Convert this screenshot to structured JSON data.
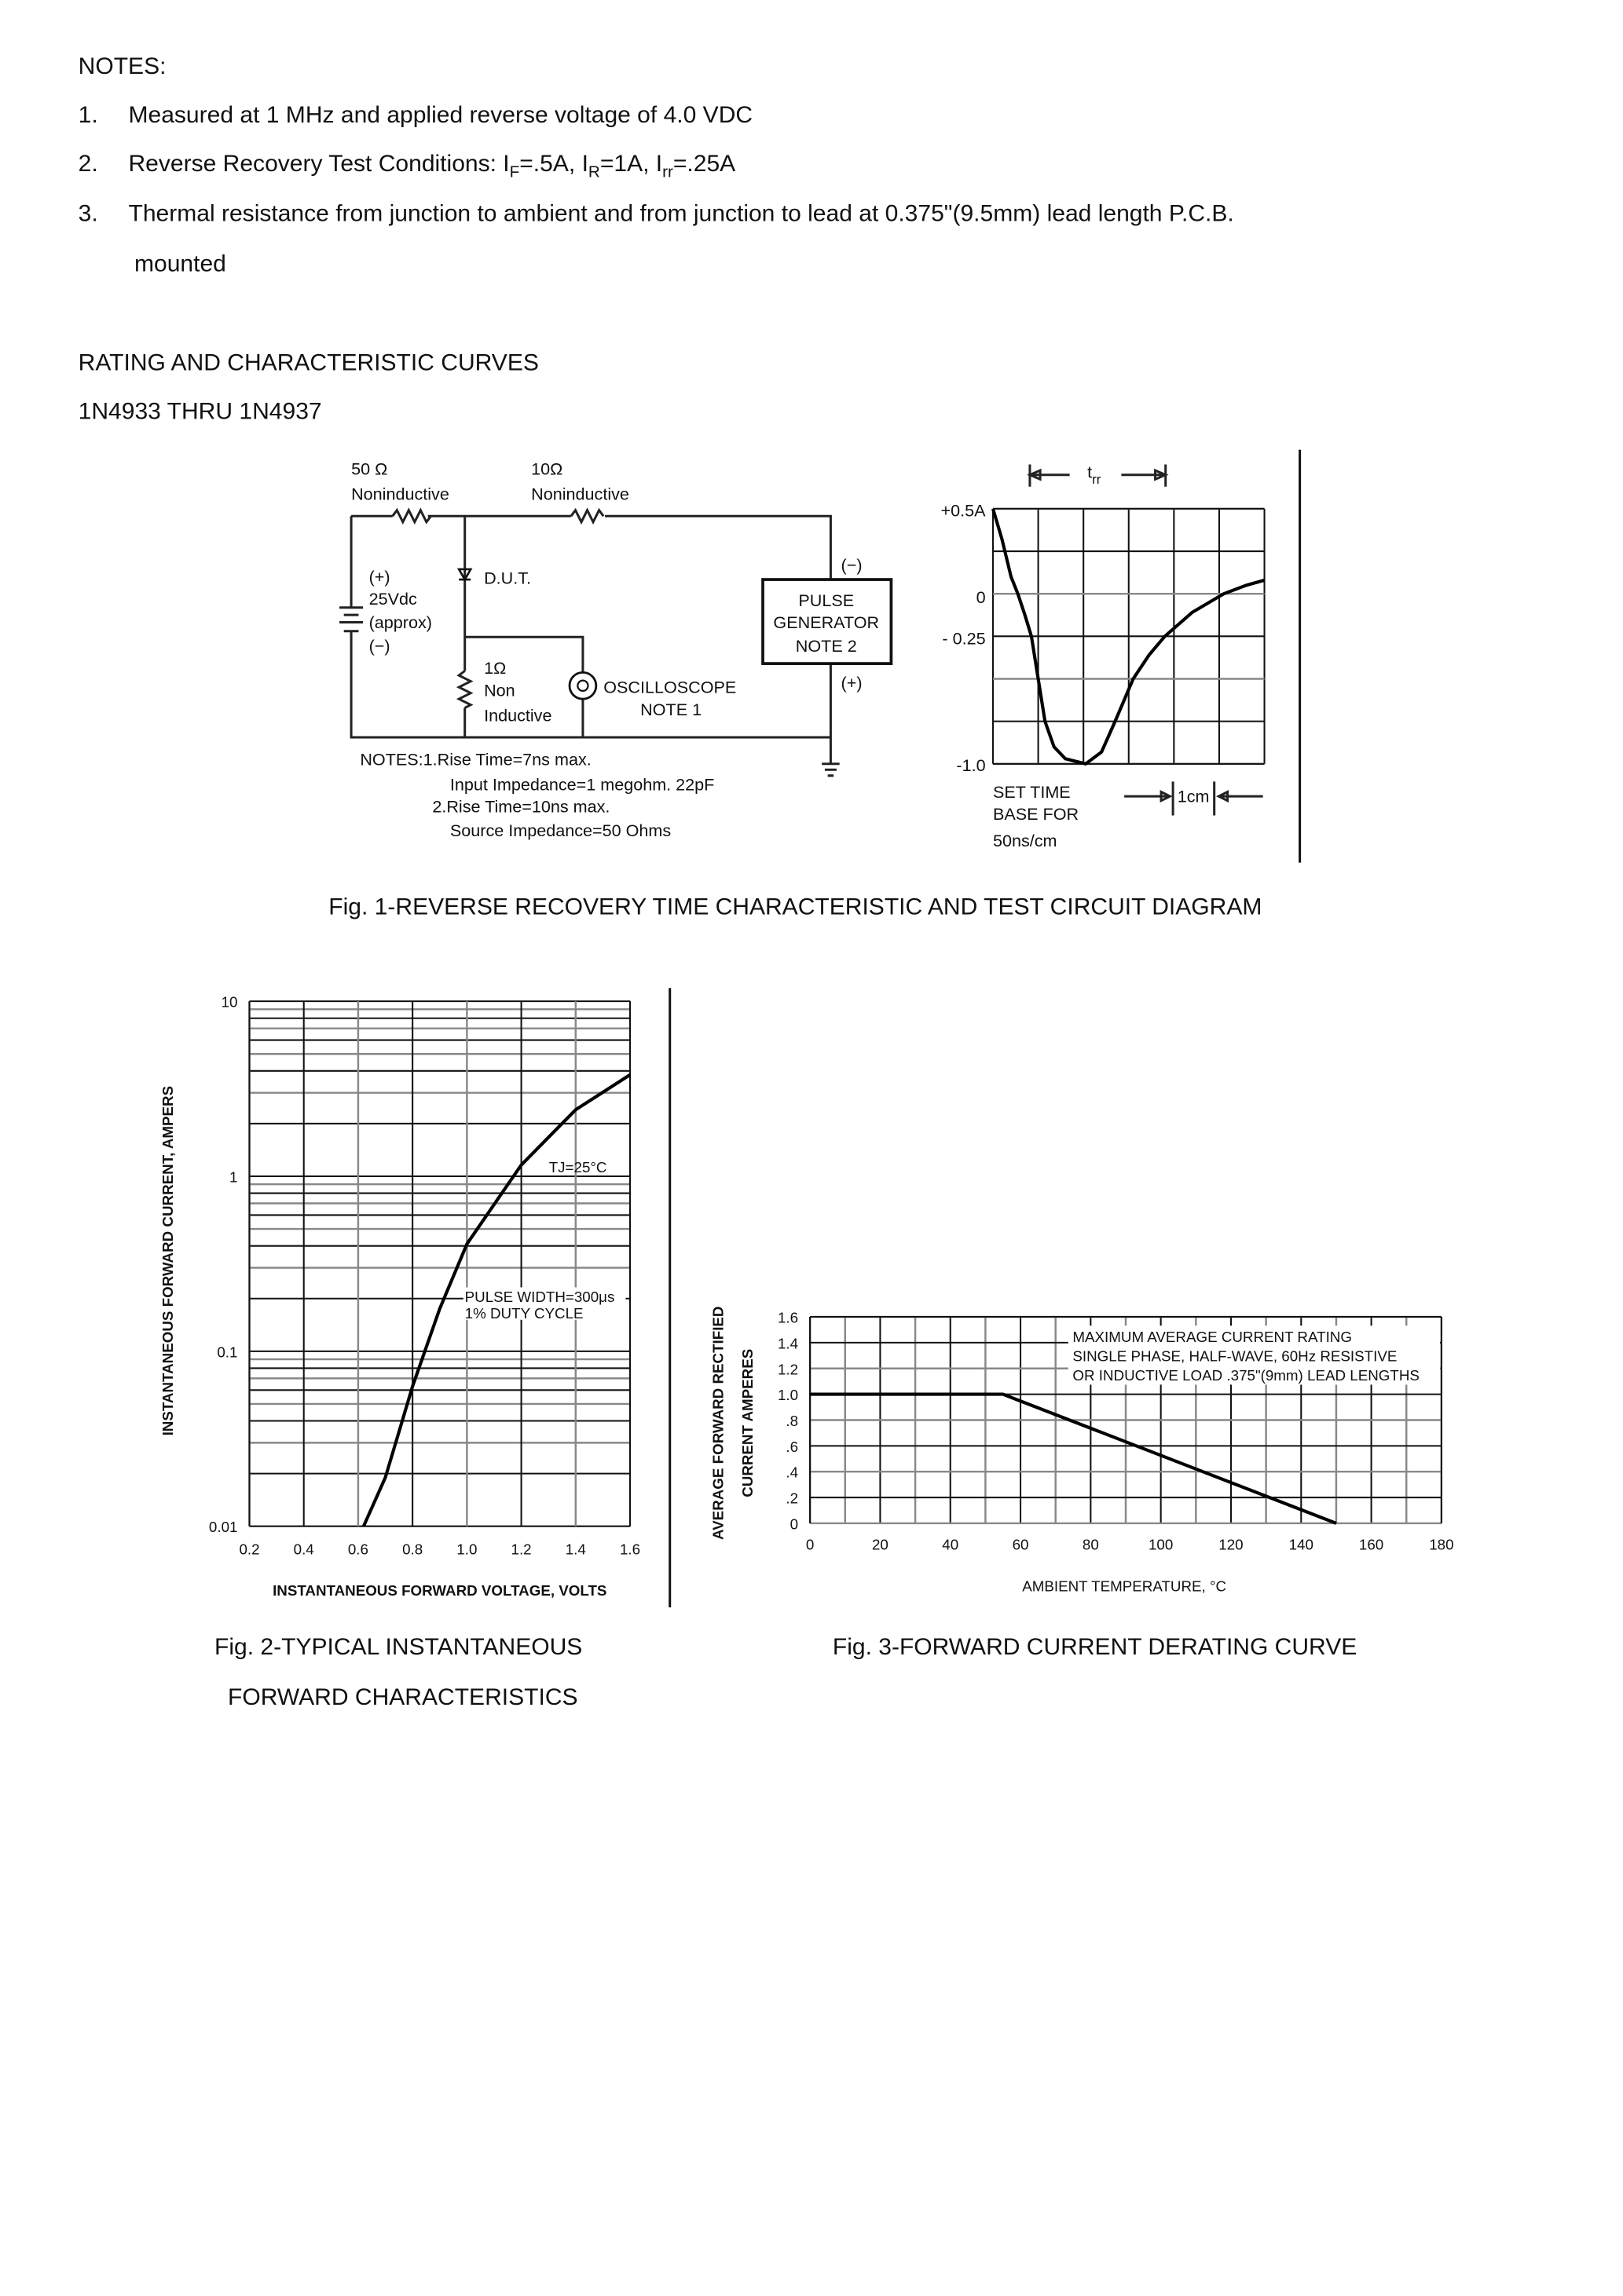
{
  "notes": {
    "heading": "NOTES:",
    "items": [
      {
        "num": "1.",
        "text": "Measured at 1 MHz and applied reverse voltage of 4.0 VDC"
      },
      {
        "num": "2.",
        "parts": [
          "Reverse Recovery Test Conditions: I",
          "F",
          "=.5A, I",
          "R",
          "=1A, I",
          "rr",
          "=.25A"
        ]
      },
      {
        "num": "3.",
        "text": "Thermal resistance from junction to ambient and from junction to lead at 0.375\"(9.5mm) lead length P.C.B.",
        "cont": "mounted"
      }
    ]
  },
  "section": {
    "title": "RATING AND CHARACTERISTIC CURVES",
    "subtitle": "1N4933 THRU 1N4937"
  },
  "fig1": {
    "circuit": {
      "r50": "50 Ω",
      "r50_type": "Noninductive",
      "r10": "10Ω",
      "r10_type": "Noninductive",
      "batt_plus": "(+)",
      "batt_v": "25Vdc",
      "batt_approx": "(approx)",
      "batt_minus": "(−)",
      "dut": "D.U.T.",
      "r1": "1Ω",
      "r1_type1": "Non",
      "r1_type2": "Inductive",
      "scope": "OSCILLOSCOPE",
      "scope_note": "NOTE 1",
      "pg1": "PULSE",
      "pg2": "GENERATOR",
      "pg3": "NOTE 2",
      "pg_minus": "(−)",
      "pg_plus": "(+)",
      "notes": [
        "NOTES:1.Rise  Time=7ns  max.",
        "Input  Impedance=1 megohm.  22pF",
        "2.Rise  Time=10ns  max.",
        "Source  Impedance=50  Ohms"
      ]
    },
    "scope": {
      "trr_label": "t",
      "trr_sub": "rr",
      "set_time": [
        "SET  TIME",
        "BASE  FOR",
        "50ns/cm"
      ],
      "scale_label": "1cm"
    },
    "caption": "Fig. 1-REVERSE RECOVERY TIME CHARACTERISTIC AND TEST CIRCUIT DIAGRAM"
  },
  "fig2": {
    "caption_lines": [
      "Fig. 2-TYPICAL INSTANTANEOUS",
      "FORWARD CHARACTERISTICS"
    ],
    "annotations": {
      "tj": "TJ=25°C",
      "pulse": "PULSE WIDTH=300μs",
      "duty": "1% DUTY CYCLE"
    }
  },
  "fig3": {
    "caption": "Fig. 3-FORWARD CURRENT DERATING CURVE",
    "annotation": [
      "MAXIMUM  AVERAGE  CURRENT  RATING",
      "SINGLE  PHASE,  HALF-WAVE,  60Hz  RESISTIVE",
      "OR  INDUCTIVE  LOAD  .375\"(9mm)  LEAD  LENGTHS"
    ]
  },
  "chart_data": [
    {
      "type": "line",
      "title": "",
      "xlabel": "",
      "ylabel": "",
      "yticks": [
        "+0.5A",
        "0",
        "- 0.25",
        "-1.0"
      ],
      "ylim": [
        -1.0,
        0.5
      ],
      "xlim": [
        0,
        6
      ],
      "grid": true,
      "x": [
        0,
        0.2,
        0.4,
        0.55,
        0.7,
        0.85,
        1.0,
        1.15,
        1.35,
        1.6,
        2.05,
        2.4,
        2.7,
        3.1,
        3.45,
        3.8,
        4.4,
        5.1,
        5.6,
        6.0
      ],
      "y": [
        0.5,
        0.32,
        0.1,
        0,
        -0.12,
        -0.25,
        -0.5,
        -0.75,
        -0.9,
        -0.97,
        -1.0,
        -0.93,
        -0.75,
        -0.5,
        -0.36,
        -0.25,
        -0.11,
        0,
        0.05,
        0.08
      ]
    },
    {
      "type": "line",
      "xlabel": "INSTANTANEOUS FORWARD VOLTAGE, VOLTS",
      "ylabel": "INSTANTANEOUS FORWARD CURRENT, AMPERS",
      "xticks": [
        "0.2",
        "0.4",
        "0.6",
        "0.8",
        "1.0",
        "1.2",
        "1.4",
        "1.6"
      ],
      "yticks": [
        "10",
        "1",
        "0.1",
        "0.01"
      ],
      "xlim": [
        0.2,
        1.6
      ],
      "ylim": [
        0.01,
        10
      ],
      "yscale": "log",
      "grid": true,
      "x": [
        0.62,
        0.7,
        0.8,
        0.9,
        1.0,
        1.1,
        1.2,
        1.4,
        1.6
      ],
      "y": [
        0.01,
        0.019,
        0.063,
        0.175,
        0.41,
        0.69,
        1.16,
        2.4,
        3.8
      ]
    },
    {
      "type": "line",
      "xlabel": "AMBIENT  TEMPERATURE, °C",
      "ylabel": [
        "AVERAGE  FORWARD  RECTIFIED",
        "CURRENT  AMPERES"
      ],
      "xticks": [
        "0",
        "20",
        "40",
        "60",
        "80",
        "100",
        "120",
        "140",
        "160",
        "180"
      ],
      "yticks": [
        "1.6",
        "1.4",
        "1.2",
        "1.0",
        ".8",
        ".6",
        ".4",
        ".2",
        "0"
      ],
      "xlim": [
        0,
        180
      ],
      "ylim": [
        0,
        1.6
      ],
      "grid": true,
      "x": [
        0,
        55,
        150
      ],
      "y": [
        1.0,
        1.0,
        0
      ]
    }
  ]
}
